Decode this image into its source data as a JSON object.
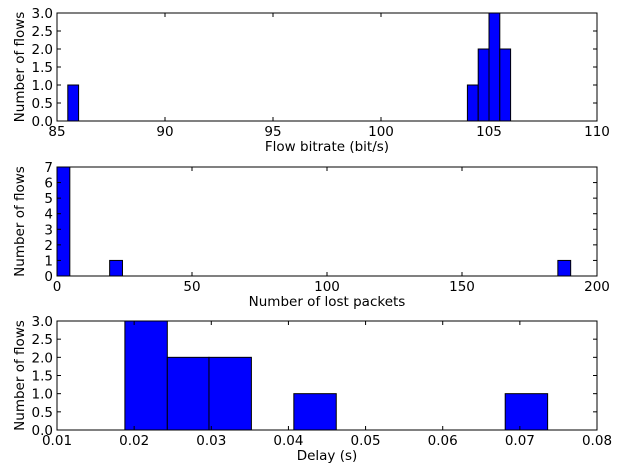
{
  "chart_data": [
    {
      "type": "bar",
      "xlabel": "Flow bitrate (bit/s)",
      "ylabel": "Number of flows",
      "xlim": [
        85,
        110
      ],
      "ylim": [
        0,
        3.0
      ],
      "xticks": [
        85,
        90,
        95,
        100,
        105,
        110
      ],
      "xtick_labels": [
        "85",
        "90",
        "95",
        "100",
        "105",
        "110"
      ],
      "yticks": [
        0,
        0.5,
        1,
        1.5,
        2,
        2.5,
        3
      ],
      "ytick_labels": [
        "0.0",
        "0.5",
        "1.0",
        "1.5",
        "2.0",
        "2.5",
        "3.0"
      ],
      "grid": false,
      "color": "#0000ff",
      "bins": [
        {
          "x0": 85.5,
          "x1": 86.0,
          "count": 1
        },
        {
          "x0": 104.0,
          "x1": 104.5,
          "count": 1
        },
        {
          "x0": 104.5,
          "x1": 105.0,
          "count": 2
        },
        {
          "x0": 105.0,
          "x1": 105.5,
          "count": 3
        },
        {
          "x0": 105.5,
          "x1": 106.0,
          "count": 2
        }
      ]
    },
    {
      "type": "bar",
      "xlabel": "Number of lost packets",
      "ylabel": "Number of flows",
      "xlim": [
        0,
        200
      ],
      "ylim": [
        0,
        7
      ],
      "xticks": [
        0,
        50,
        100,
        150,
        200
      ],
      "xtick_labels": [
        "0",
        "50",
        "100",
        "150",
        "200"
      ],
      "yticks": [
        0,
        1,
        2,
        3,
        4,
        5,
        6,
        7
      ],
      "ytick_labels": [
        "0",
        "1",
        "2",
        "3",
        "4",
        "5",
        "6",
        "7"
      ],
      "grid": false,
      "color": "#0000ff",
      "bins": [
        {
          "x0": 0,
          "x1": 4.75,
          "count": 7
        },
        {
          "x0": 19.5,
          "x1": 24.25,
          "count": 1
        },
        {
          "x0": 185.5,
          "x1": 190.25,
          "count": 1
        }
      ]
    },
    {
      "type": "bar",
      "xlabel": "Delay (s)",
      "ylabel": "Number of flows",
      "xlim": [
        0.01,
        0.08
      ],
      "ylim": [
        0,
        3.0
      ],
      "xticks": [
        0.01,
        0.02,
        0.03,
        0.04,
        0.05,
        0.06,
        0.07,
        0.08
      ],
      "xtick_labels": [
        "0.01",
        "0.02",
        "0.03",
        "0.04",
        "0.05",
        "0.06",
        "0.07",
        "0.08"
      ],
      "yticks": [
        0,
        0.5,
        1,
        1.5,
        2,
        2.5,
        3
      ],
      "ytick_labels": [
        "0.0",
        "0.5",
        "1.0",
        "1.5",
        "2.0",
        "2.5",
        "3.0"
      ],
      "grid": false,
      "color": "#0000ff",
      "bins": [
        {
          "x0": 0.0188,
          "x1": 0.0243,
          "count": 3
        },
        {
          "x0": 0.0243,
          "x1": 0.0297,
          "count": 2
        },
        {
          "x0": 0.0297,
          "x1": 0.0352,
          "count": 2
        },
        {
          "x0": 0.0352,
          "x1": 0.0407,
          "count": 0
        },
        {
          "x0": 0.0407,
          "x1": 0.0462,
          "count": 1
        },
        {
          "x0": 0.0462,
          "x1": 0.0517,
          "count": 0
        },
        {
          "x0": 0.0517,
          "x1": 0.0571,
          "count": 0
        },
        {
          "x0": 0.0571,
          "x1": 0.0626,
          "count": 0
        },
        {
          "x0": 0.0626,
          "x1": 0.0681,
          "count": 0
        },
        {
          "x0": 0.0681,
          "x1": 0.0736,
          "count": 1
        }
      ]
    }
  ]
}
